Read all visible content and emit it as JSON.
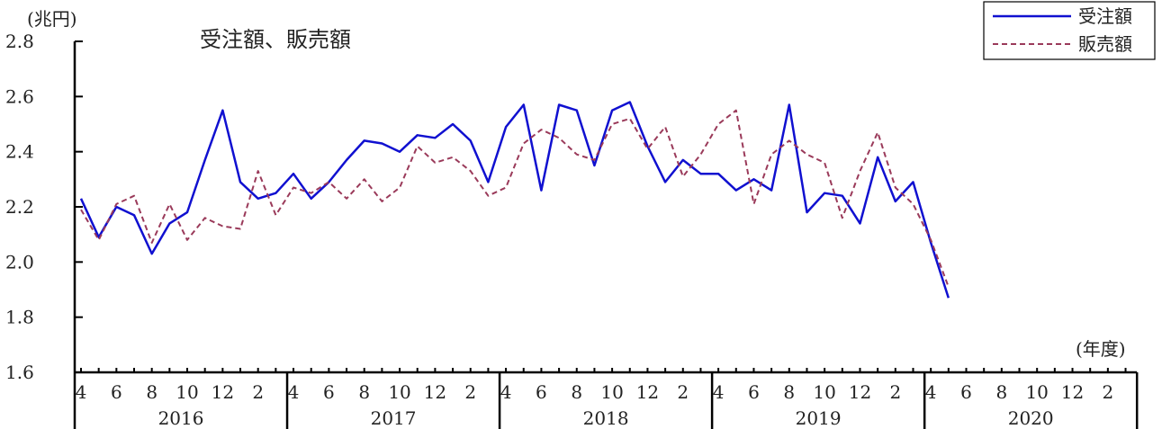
{
  "chart_data": {
    "type": "line",
    "title": "受注額、販売額",
    "ylabel": "(兆円)",
    "xlabel": "(年度)",
    "ylim": [
      1.6,
      2.8
    ],
    "yticks": [
      "1.6",
      "1.8",
      "2.0",
      "2.2",
      "2.4",
      "2.6",
      "2.8"
    ],
    "month_tick_labels": [
      "4",
      "6",
      "8",
      "10",
      "12",
      "2"
    ],
    "years": [
      "2016",
      "2017",
      "2018",
      "2019",
      "2020"
    ],
    "legend_position": "top-right",
    "series": [
      {
        "name": "受注額",
        "color": "#1010d0",
        "style": "solid",
        "values": [
          2.23,
          2.09,
          2.2,
          2.17,
          2.03,
          2.14,
          2.18,
          2.37,
          2.55,
          2.29,
          2.23,
          2.25,
          2.32,
          2.23,
          2.29,
          2.37,
          2.44,
          2.43,
          2.4,
          2.46,
          2.45,
          2.5,
          2.44,
          2.29,
          2.49,
          2.57,
          2.26,
          2.57,
          2.55,
          2.35,
          2.55,
          2.58,
          2.42,
          2.29,
          2.37,
          2.32,
          2.32,
          2.26,
          2.3,
          2.26,
          2.57,
          2.18,
          2.25,
          2.24,
          2.14,
          2.38,
          2.22,
          2.29,
          2.07,
          1.87
        ]
      },
      {
        "name": "販売額",
        "color": "#9a3a5a",
        "style": "dashed",
        "values": [
          2.19,
          2.08,
          2.21,
          2.24,
          2.07,
          2.21,
          2.08,
          2.16,
          2.13,
          2.12,
          2.33,
          2.17,
          2.27,
          2.25,
          2.29,
          2.23,
          2.3,
          2.22,
          2.27,
          2.42,
          2.36,
          2.38,
          2.33,
          2.24,
          2.27,
          2.43,
          2.48,
          2.45,
          2.39,
          2.37,
          2.5,
          2.52,
          2.41,
          2.49,
          2.31,
          2.39,
          2.5,
          2.55,
          2.21,
          2.39,
          2.44,
          2.39,
          2.36,
          2.16,
          2.33,
          2.47,
          2.27,
          2.21,
          2.08,
          1.91
        ]
      }
    ]
  }
}
